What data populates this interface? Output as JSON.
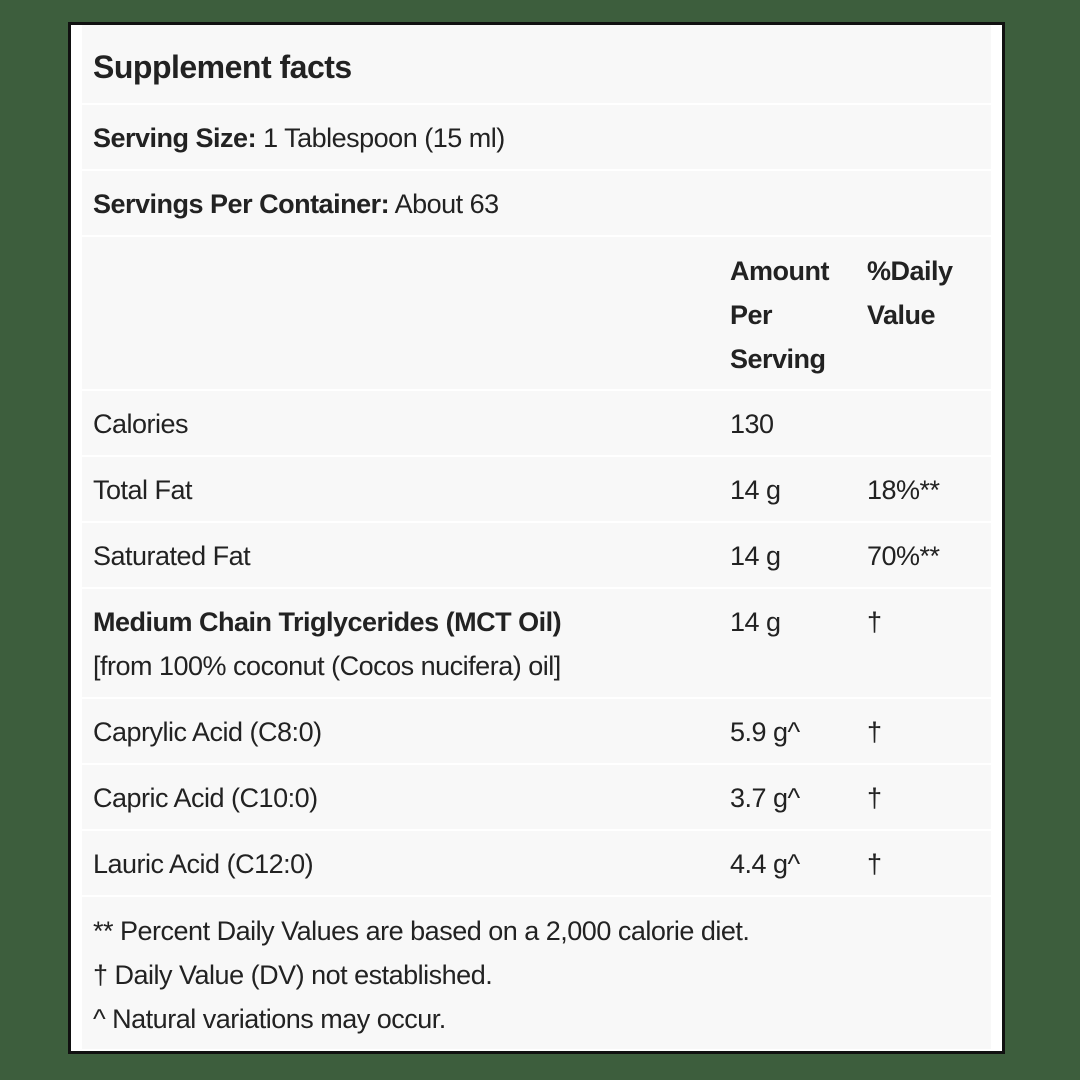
{
  "title": "Supplement facts",
  "serving_size": {
    "label": "Serving Size:",
    "value": " 1 Tablespoon (15 ml)"
  },
  "servings_per_container": {
    "label": "Servings Per Container:",
    "value": " About 63"
  },
  "columns": {
    "amount": [
      "Amount",
      "Per",
      "Serving"
    ],
    "daily_value": [
      "%Daily",
      "Value"
    ]
  },
  "rows": [
    {
      "name": "Calories",
      "amount": "130",
      "dv": ""
    },
    {
      "name": "Total Fat",
      "amount": "14 g",
      "dv": "18%**"
    },
    {
      "name": "Saturated Fat",
      "amount": "14 g",
      "dv": "70%**"
    },
    {
      "name": "Medium Chain Triglycerides (MCT Oil)",
      "note": "[from 100% coconut (Cocos nucifera) oil]",
      "amount": "14 g",
      "dv": "†"
    },
    {
      "name": "Caprylic Acid (C8:0)",
      "amount": "5.9 g^",
      "dv": "†"
    },
    {
      "name": "Capric Acid (C10:0)",
      "amount": "3.7 g^",
      "dv": "†"
    },
    {
      "name": "Lauric Acid (C12:0)",
      "amount": "4.4 g^",
      "dv": "†"
    }
  ],
  "footnotes": [
    "** Percent Daily Values are based on a 2,000 calorie diet.",
    "† Daily Value (DV) not established.",
    "^ Natural variations may occur."
  ]
}
